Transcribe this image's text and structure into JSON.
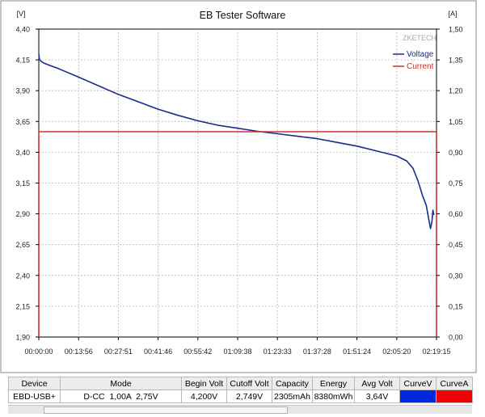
{
  "chart_data": {
    "type": "line",
    "title": "EB Tester Software",
    "brand": "ZKETECH",
    "left_unit": "[V]",
    "right_unit": "[A]",
    "left_ticks": [
      "4,40",
      "4,15",
      "3,90",
      "3,65",
      "3,40",
      "3,15",
      "2,90",
      "2,65",
      "2,40",
      "2,15",
      "1,90"
    ],
    "right_ticks": [
      "1,50",
      "1,35",
      "1,20",
      "1,05",
      "0,90",
      "0,75",
      "0,60",
      "0,45",
      "0,30",
      "0,15",
      "0,00"
    ],
    "x_ticks": [
      "00:00:00",
      "00:13:56",
      "00:27:51",
      "00:41:46",
      "00:55:42",
      "01:09:38",
      "01:23:33",
      "01:37:28",
      "01:51:24",
      "02:05:20",
      "02:19:15"
    ],
    "ylim_left": [
      1.9,
      4.4
    ],
    "ylim_right": [
      0.0,
      1.5
    ],
    "xlim": [
      "00:00:00",
      "02:19:15"
    ],
    "grid": true,
    "legend_position": "top-right",
    "series": [
      {
        "name": "Voltage",
        "axis": "left",
        "color": "#1c2a8c",
        "points": [
          [
            "00:00:00",
            4.2
          ],
          [
            "00:00:10",
            4.16
          ],
          [
            "00:00:40",
            4.14
          ],
          [
            "00:01:40",
            4.125
          ],
          [
            "00:03:20",
            4.11
          ],
          [
            "00:06:50",
            4.08
          ],
          [
            "00:13:56",
            4.01
          ],
          [
            "00:20:54",
            3.94
          ],
          [
            "00:27:51",
            3.87
          ],
          [
            "00:34:49",
            3.81
          ],
          [
            "00:41:46",
            3.75
          ],
          [
            "00:48:44",
            3.7
          ],
          [
            "00:55:42",
            3.655
          ],
          [
            "01:02:40",
            3.62
          ],
          [
            "01:09:38",
            3.595
          ],
          [
            "01:16:36",
            3.57
          ],
          [
            "01:23:33",
            3.55
          ],
          [
            "01:30:30",
            3.53
          ],
          [
            "01:37:28",
            3.51
          ],
          [
            "01:44:26",
            3.48
          ],
          [
            "01:51:24",
            3.45
          ],
          [
            "01:58:22",
            3.41
          ],
          [
            "02:05:20",
            3.37
          ],
          [
            "02:08:48",
            3.33
          ],
          [
            "02:11:00",
            3.27
          ],
          [
            "02:12:45",
            3.17
          ],
          [
            "02:14:20",
            3.05
          ],
          [
            "02:15:40",
            2.97
          ],
          [
            "02:16:35",
            2.85
          ],
          [
            "02:17:10",
            2.78
          ],
          [
            "02:17:40",
            2.84
          ],
          [
            "02:18:00",
            2.93
          ],
          [
            "02:18:15",
            2.89
          ]
        ]
      },
      {
        "name": "Current",
        "axis": "right",
        "color": "#cc3030",
        "points": [
          [
            "00:00:00",
            0.0
          ],
          [
            "00:00:00",
            1.0
          ],
          [
            "02:19:15",
            1.0
          ],
          [
            "02:19:15",
            0.0
          ]
        ]
      }
    ]
  },
  "results_table": {
    "headers": [
      "Device",
      "Mode",
      "Begin Volt",
      "Cutoff Volt",
      "Capacity",
      "Energy",
      "Avg Volt",
      "CurveV",
      "CurveA"
    ],
    "row": [
      "EBD-USB+",
      "D-CC  1,00A  2,75V",
      "4,200V",
      "2,749V",
      "2305mAh",
      "8380mWh",
      "3,64V"
    ],
    "curve_v_color": "#0028e0",
    "curve_a_color": "#f00000"
  }
}
